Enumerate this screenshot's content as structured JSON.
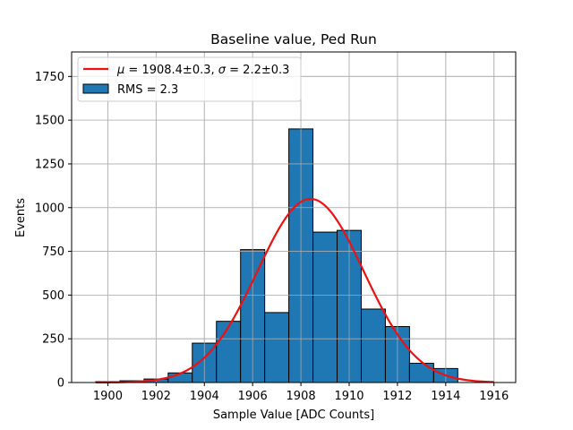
{
  "chart_data": {
    "type": "bar",
    "title": "Baseline value, Ped Run",
    "xlabel": "Sample Value [ADC Counts]",
    "ylabel": "Events",
    "xlim": [
      1898.5,
      1916.9
    ],
    "ylim": [
      0,
      1890
    ],
    "x_ticks": [
      1900,
      1902,
      1904,
      1906,
      1908,
      1910,
      1912,
      1914,
      1916
    ],
    "y_ticks": [
      0,
      250,
      500,
      750,
      1000,
      1250,
      1500,
      1750
    ],
    "grid": true,
    "legend_position": "top-left",
    "histogram": {
      "name": "RMS = 2.3",
      "color": "#1f77b4",
      "bin_edges": [
        1899.5,
        1900.5,
        1901.5,
        1902.5,
        1903.5,
        1904.5,
        1905.5,
        1906.5,
        1907.5,
        1908.5,
        1909.5,
        1910.5,
        1911.5,
        1912.5,
        1913.5,
        1914.5
      ],
      "counts": [
        5,
        10,
        20,
        55,
        225,
        350,
        760,
        400,
        1450,
        860,
        870,
        420,
        320,
        110,
        80
      ]
    },
    "fit": {
      "name_mu_symbol": "μ",
      "name_mu_value": " = 1908.4±0.3, ",
      "name_sigma_symbol": "σ",
      "name_sigma_value": " = 2.2±0.3",
      "color": "#ee1111",
      "mu": 1908.4,
      "sigma": 2.2,
      "amplitude": 1050,
      "x_range": [
        1899.5,
        1916
      ]
    }
  }
}
